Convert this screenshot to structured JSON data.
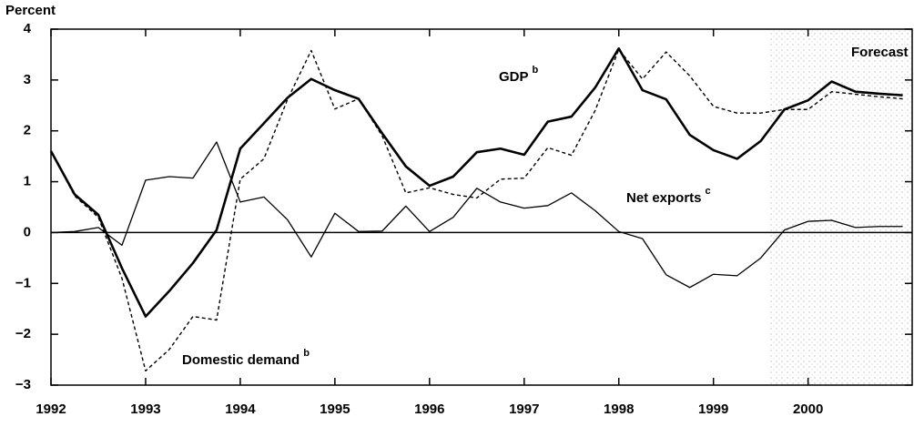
{
  "chart_data": {
    "type": "line",
    "ylabel": "Percent",
    "x": [
      1992,
      1992.25,
      1992.5,
      1992.75,
      1993,
      1993.25,
      1993.5,
      1993.75,
      1994,
      1994.25,
      1994.5,
      1994.75,
      1995,
      1995.25,
      1995.5,
      1995.75,
      1996,
      1996.25,
      1996.5,
      1996.75,
      1997,
      1997.25,
      1997.5,
      1997.75,
      1998,
      1998.25,
      1998.5,
      1998.75,
      1999,
      1999.25,
      1999.5,
      1999.75,
      2000,
      2000.25,
      2000.5,
      2000.75,
      2001
    ],
    "series": [
      {
        "name": "GDP",
        "footnote": "b",
        "color": "#000000",
        "values": [
          1.6,
          0.75,
          0.35,
          -0.7,
          -1.65,
          -1.15,
          -0.6,
          0.05,
          1.65,
          2.15,
          2.65,
          3.02,
          2.8,
          2.63,
          1.95,
          1.3,
          0.92,
          1.1,
          1.58,
          1.65,
          1.53,
          2.18,
          2.28,
          2.85,
          3.62,
          2.8,
          2.62,
          1.92,
          1.62,
          1.45,
          1.8,
          2.42,
          2.6,
          2.97,
          2.77,
          2.73,
          2.7
        ]
      },
      {
        "name": "Domestic demand",
        "footnote": "b",
        "color": "#000000",
        "values": [
          1.6,
          0.72,
          0.3,
          -0.9,
          -2.72,
          -2.3,
          -1.65,
          -1.72,
          1.05,
          1.45,
          2.62,
          3.58,
          2.43,
          2.63,
          1.9,
          0.78,
          0.88,
          0.75,
          0.68,
          1.05,
          1.07,
          1.67,
          1.52,
          2.4,
          3.6,
          3.02,
          3.55,
          3.08,
          2.48,
          2.35,
          2.35,
          2.42,
          2.42,
          2.77,
          2.72,
          2.67,
          2.63
        ]
      },
      {
        "name": "Net exports",
        "footnote": "c",
        "color": "#000000",
        "values": [
          0,
          0.02,
          0.1,
          -0.25,
          1.03,
          1.1,
          1.07,
          1.78,
          0.6,
          0.7,
          0.25,
          -0.48,
          0.38,
          0.02,
          0.03,
          0.52,
          0.02,
          0.3,
          0.87,
          0.6,
          0.48,
          0.53,
          0.78,
          0.43,
          0.02,
          -0.12,
          -0.83,
          -1.08,
          -0.82,
          -0.85,
          -0.5,
          0.05,
          0.22,
          0.24,
          0.1,
          0.12,
          0.12
        ]
      }
    ],
    "forecast": {
      "label": "Forecast",
      "start": 1999.6
    },
    "xlim": [
      1992,
      2001.1
    ],
    "xticks": [
      1992,
      1993,
      1994,
      1995,
      1996,
      1997,
      1998,
      1999,
      2000
    ],
    "ylim": [
      -3,
      4
    ],
    "yticks": [
      -3,
      -2,
      -1,
      0,
      1,
      2,
      3,
      4
    ]
  }
}
